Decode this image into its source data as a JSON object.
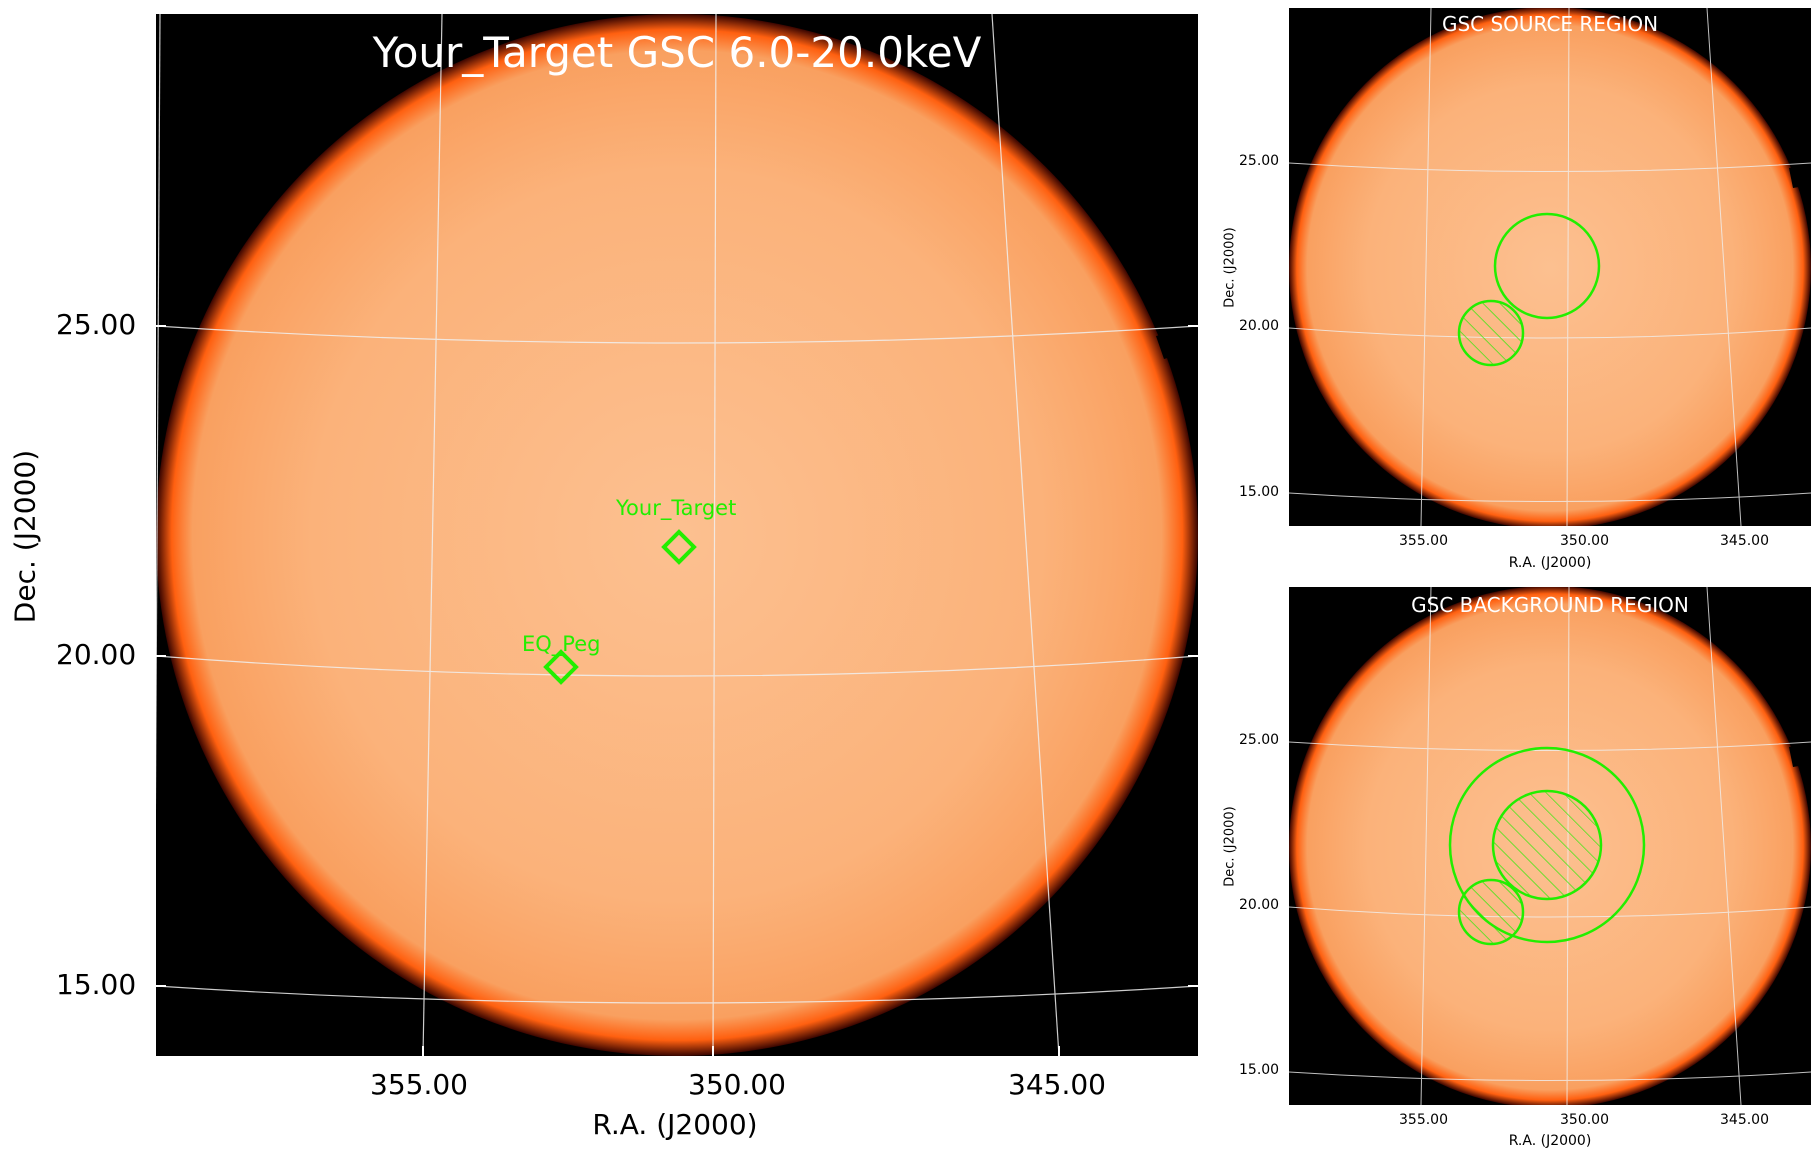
{
  "main": {
    "title": "Your_Target GSC 6.0-20.0keV",
    "xlabel": "R.A. (J2000)",
    "ylabel": "Dec. (J2000)",
    "x_ticks": [
      "355.00",
      "350.00",
      "345.00"
    ],
    "y_ticks": [
      "25.00",
      "20.00",
      "15.00"
    ],
    "sources": [
      {
        "name": "Your_Target",
        "ra": 351.0,
        "dec": 21.9
      },
      {
        "name": "EQ_Peg",
        "ra": 352.8,
        "dec": 19.8
      }
    ]
  },
  "source_region": {
    "title": "GSC SOURCE REGION",
    "xlabel": "R.A. (J2000)",
    "ylabel": "Dec. (J2000)",
    "x_ticks": [
      "355.00",
      "350.00",
      "345.00"
    ],
    "y_ticks": [
      "25.00",
      "20.00",
      "15.00"
    ]
  },
  "background_region": {
    "title": "GSC BACKGROUND REGION",
    "xlabel": "R.A. (J2000)",
    "ylabel": "Dec. (J2000)",
    "x_ticks": [
      "355.00",
      "350.00",
      "345.00"
    ],
    "y_ticks": [
      "25.00",
      "20.00",
      "15.00"
    ]
  },
  "colors": {
    "map_fill": "#fbb47a",
    "map_edge": "#ff5010",
    "background": "#000000",
    "region": "#22ee00",
    "grid": "#e8e8e8",
    "title": "#ffffff"
  }
}
